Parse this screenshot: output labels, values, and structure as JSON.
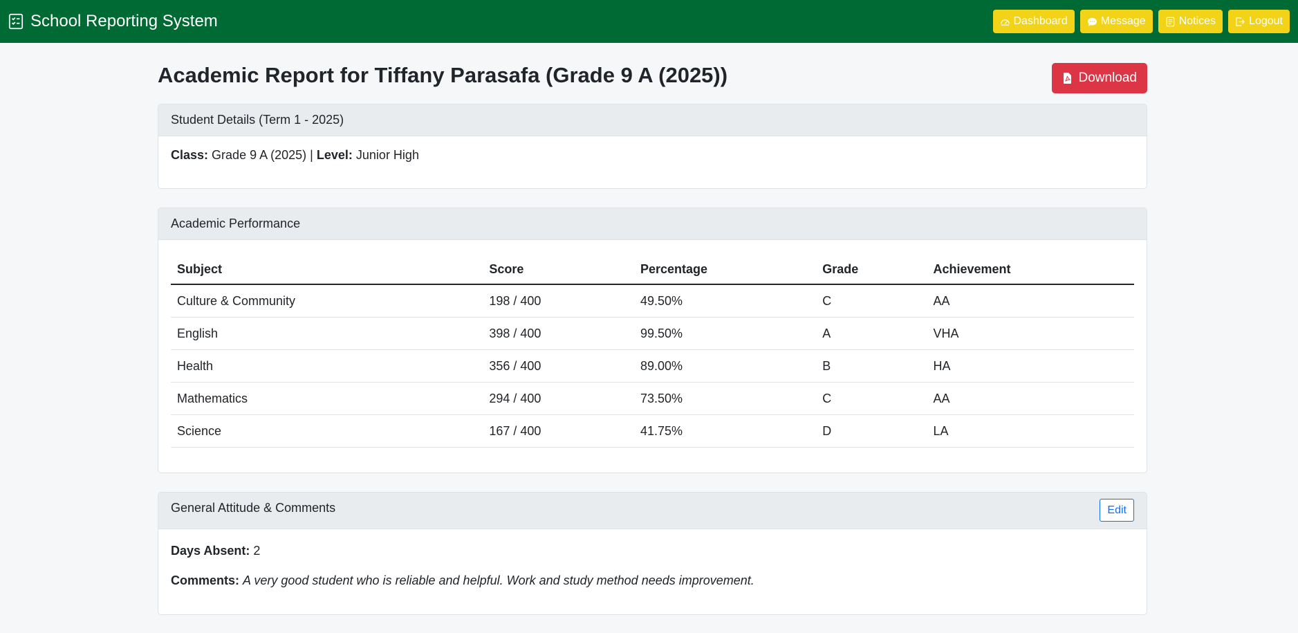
{
  "navbar": {
    "brand": "School Reporting System",
    "buttons": [
      {
        "label": "Dashboard",
        "icon": "speedometer-icon"
      },
      {
        "label": "Message",
        "icon": "chat-icon"
      },
      {
        "label": "Notices",
        "icon": "notes-icon"
      },
      {
        "label": "Logout",
        "icon": "logout-icon"
      }
    ],
    "colors": {
      "background": "#006a34",
      "button": "#f2d318"
    }
  },
  "page": {
    "title": "Academic Report for Tiffany Parasafa (Grade 9 A (2025))",
    "download_label": "Download"
  },
  "student_details": {
    "header": "Student Details (Term 1 - 2025)",
    "class_label": "Class:",
    "class_value": "Grade 9 A (2025)",
    "separator": "|",
    "level_label": "Level:",
    "level_value": "Junior High"
  },
  "performance": {
    "header": "Academic Performance",
    "columns": [
      "Subject",
      "Score",
      "Percentage",
      "Grade",
      "Achievement"
    ],
    "rows": [
      [
        "Culture & Community",
        "198 / 400",
        "49.50%",
        "C",
        "AA"
      ],
      [
        "English",
        "398 / 400",
        "99.50%",
        "A",
        "VHA"
      ],
      [
        "Health",
        "356 / 400",
        "89.00%",
        "B",
        "HA"
      ],
      [
        "Mathematics",
        "294 / 400",
        "73.50%",
        "C",
        "AA"
      ],
      [
        "Science",
        "167 / 400",
        "41.75%",
        "D",
        "LA"
      ]
    ]
  },
  "attitude": {
    "header": "General Attitude & Comments",
    "edit_label": "Edit",
    "days_absent_label": "Days Absent:",
    "days_absent_value": "2",
    "comments_label": "Comments:",
    "comments_value": "A very good student who is reliable and helpful. Work and study method needs improvement."
  }
}
